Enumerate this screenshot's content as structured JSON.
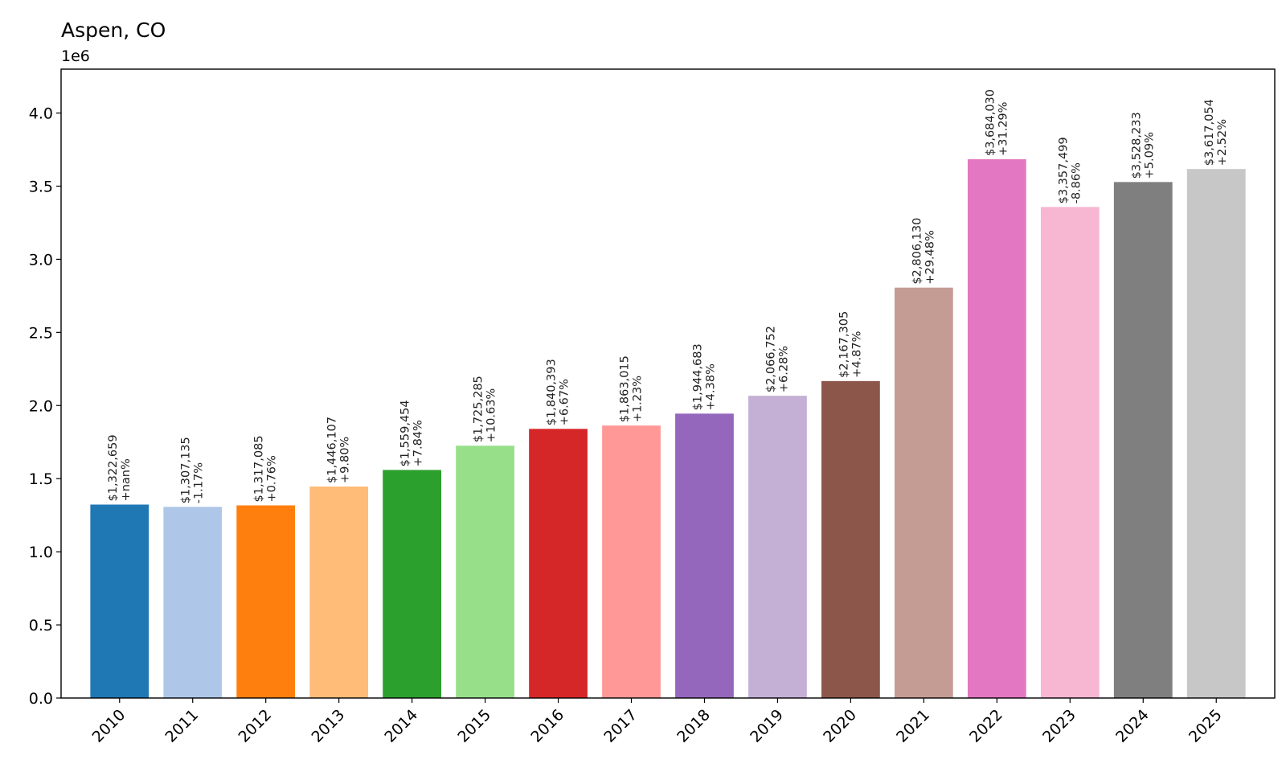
{
  "chart_data": {
    "type": "bar",
    "title": "Aspen, CO",
    "y_offset_label": "1e6",
    "xlabel": "",
    "ylabel": "",
    "ylim": [
      0,
      4300000
    ],
    "y_ticks": [
      0,
      500000,
      1000000,
      1500000,
      2000000,
      2500000,
      3000000,
      3500000,
      4000000
    ],
    "y_tick_labels": [
      "0.0",
      "0.5",
      "1.0",
      "1.5",
      "2.0",
      "2.5",
      "3.0",
      "3.5",
      "4.0"
    ],
    "grid": false,
    "legend": "none",
    "categories": [
      "2010",
      "2011",
      "2012",
      "2013",
      "2014",
      "2015",
      "2016",
      "2017",
      "2018",
      "2019",
      "2020",
      "2021",
      "2022",
      "2023",
      "2024",
      "2025"
    ],
    "values": [
      1322659,
      1307135,
      1317085,
      1446107,
      1559454,
      1725285,
      1840393,
      1863015,
      1944683,
      2066752,
      2167305,
      2806130,
      3684030,
      3357499,
      3528233,
      3617054
    ],
    "value_labels": [
      "$1,322,659",
      "$1,307,135",
      "$1,317,085",
      "$1,446,107",
      "$1,559,454",
      "$1,725,285",
      "$1,840,393",
      "$1,863,015",
      "$1,944,683",
      "$2,066,752",
      "$2,167,305",
      "$2,806,130",
      "$3,684,030",
      "$3,357,499",
      "$3,528,233",
      "$3,617,054"
    ],
    "change_labels": [
      "+nan%",
      "-1.17%",
      "+0.76%",
      "+9.80%",
      "+7.84%",
      "+10.63%",
      "+6.67%",
      "+1.23%",
      "+4.38%",
      "+6.28%",
      "+4.87%",
      "+29.48%",
      "+31.29%",
      "-8.86%",
      "+5.09%",
      "+2.52%"
    ],
    "colors": [
      "#1f77b4",
      "#aec7e8",
      "#ff7f0e",
      "#ffbb78",
      "#2ca02c",
      "#98df8a",
      "#d62728",
      "#ff9896",
      "#9467bd",
      "#c5b0d5",
      "#8c564b",
      "#c49c94",
      "#e377c2",
      "#f7b6d2",
      "#7f7f7f",
      "#c7c7c7"
    ]
  }
}
